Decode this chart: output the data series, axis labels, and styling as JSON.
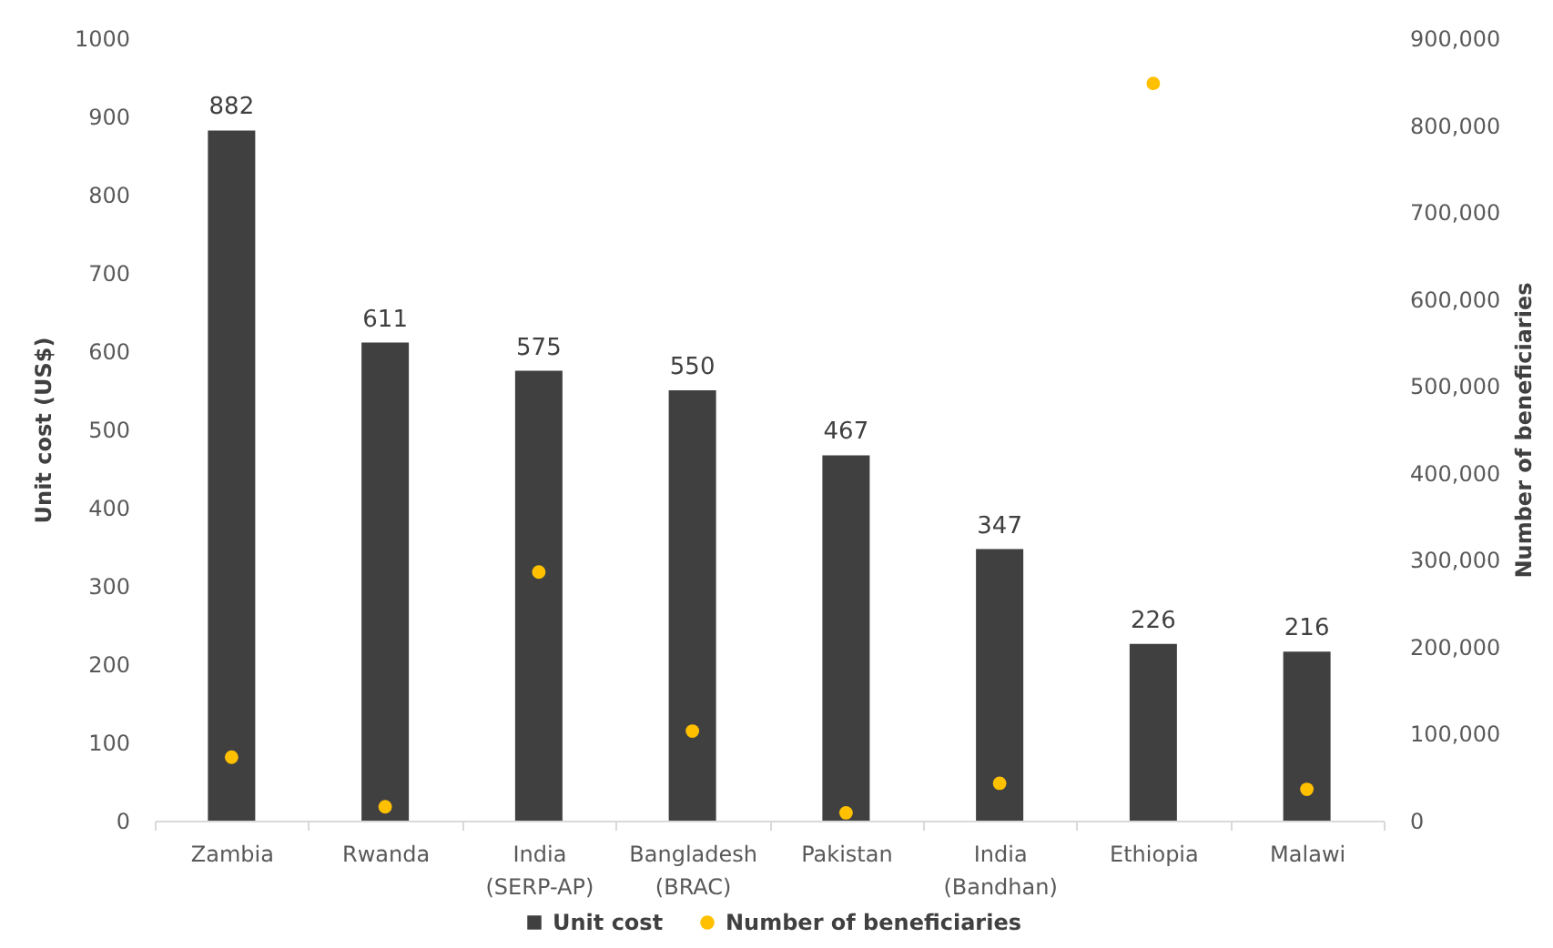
{
  "chart_data": {
    "type": "bar",
    "categories": [
      "Zambia",
      "Rwanda",
      "India (SERP-AP)",
      "Bangladesh (BRAC)",
      "Pakistan",
      "India (Bandhan)",
      "Ethiopia",
      "Malawi"
    ],
    "series": [
      {
        "name": "Unit cost",
        "color": "#404040",
        "values": [
          882,
          611,
          575,
          550,
          467,
          347,
          226,
          216
        ],
        "value_labels": [
          "882",
          "611",
          "575",
          "550",
          "467",
          "347",
          "226",
          "216"
        ]
      },
      {
        "name": "Number of beneficiaries",
        "type": "scatter",
        "axis": "y2",
        "marker": "circle",
        "color": "#ffc000",
        "values": [
          73000,
          16000,
          286000,
          103000,
          9000,
          43000,
          848000,
          36000
        ]
      }
    ],
    "ylabel": "Unit cost (US$)",
    "y2label": "Number of beneficiaries",
    "ylim": [
      0,
      1000
    ],
    "yticks": [
      0,
      100,
      200,
      300,
      400,
      500,
      600,
      700,
      800,
      900,
      1000
    ],
    "y2lim": [
      0,
      900000
    ],
    "y2ticks": [
      0,
      {
        "value": 100000,
        "label": "100,000"
      },
      {
        "value": 200000,
        "label": "200,000"
      },
      {
        "value": 300000,
        "label": "300,000"
      },
      {
        "value": 400000,
        "label": "400,000"
      },
      {
        "value": 500000,
        "label": "500,000"
      },
      {
        "value": 600000,
        "label": "600,000"
      },
      {
        "value": 700000,
        "label": "700,000"
      },
      {
        "value": 800000,
        "label": "800,000"
      },
      {
        "value": 900000,
        "label": "900,000"
      }
    ],
    "legend": "bottom"
  }
}
